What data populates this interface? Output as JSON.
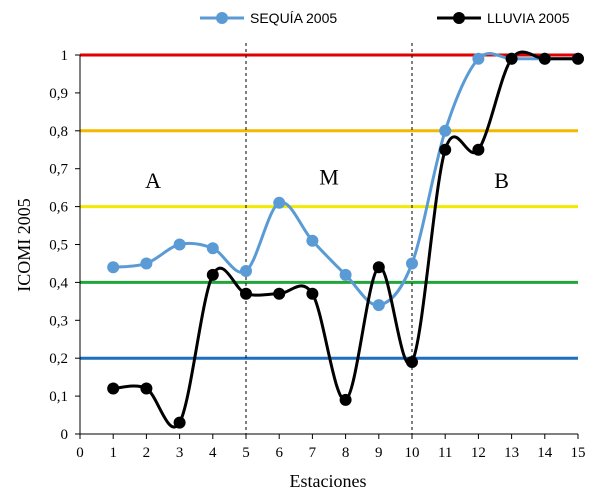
{
  "chart_data": {
    "type": "line",
    "xlabel": "Estaciones",
    "ylabel": "ICOMI 2005",
    "xlim": [
      0,
      15
    ],
    "ylim": [
      0,
      1
    ],
    "x_ticks": [
      0,
      1,
      2,
      3,
      4,
      5,
      6,
      7,
      8,
      9,
      10,
      11,
      12,
      13,
      14,
      15
    ],
    "y_ticks": [
      "0",
      "0,1",
      "0,2",
      "0,3",
      "0,4",
      "0,5",
      "0,6",
      "0,7",
      "0,8",
      "0,9",
      "1"
    ],
    "y_tick_values": [
      0,
      0.1,
      0.2,
      0.3,
      0.4,
      0.5,
      0.6,
      0.7,
      0.8,
      0.9,
      1
    ],
    "x": [
      1,
      2,
      3,
      4,
      5,
      6,
      7,
      8,
      9,
      10,
      11,
      12,
      13,
      14,
      15
    ],
    "series": [
      {
        "name": "SEQUÍA 2005",
        "color": "#5b9bd5",
        "values": [
          0.44,
          0.45,
          0.5,
          0.49,
          0.43,
          0.61,
          0.51,
          0.42,
          0.34,
          0.45,
          0.8,
          0.99,
          0.99,
          0.99,
          0.99
        ]
      },
      {
        "name": "LLUVIA 2005",
        "color": "#000000",
        "values": [
          0.12,
          0.12,
          0.03,
          0.42,
          0.37,
          0.37,
          0.37,
          0.09,
          0.44,
          0.19,
          0.75,
          0.75,
          0.99,
          0.99,
          0.99
        ]
      }
    ],
    "reference_lines": [
      {
        "y": 1.0,
        "color": "#e00000"
      },
      {
        "y": 0.8,
        "color": "#f5b800"
      },
      {
        "y": 0.6,
        "color": "#f2ea00"
      },
      {
        "y": 0.4,
        "color": "#22a53a"
      },
      {
        "y": 0.2,
        "color": "#1f6fc0"
      }
    ],
    "zone_dividers": [
      5,
      10
    ],
    "zones": [
      {
        "label": "A",
        "x": 2.2,
        "y": 0.67
      },
      {
        "label": "M",
        "x": 7.5,
        "y": 0.68
      },
      {
        "label": "B",
        "x": 12.7,
        "y": 0.67
      }
    ],
    "legend_position": "top",
    "grid": false
  }
}
